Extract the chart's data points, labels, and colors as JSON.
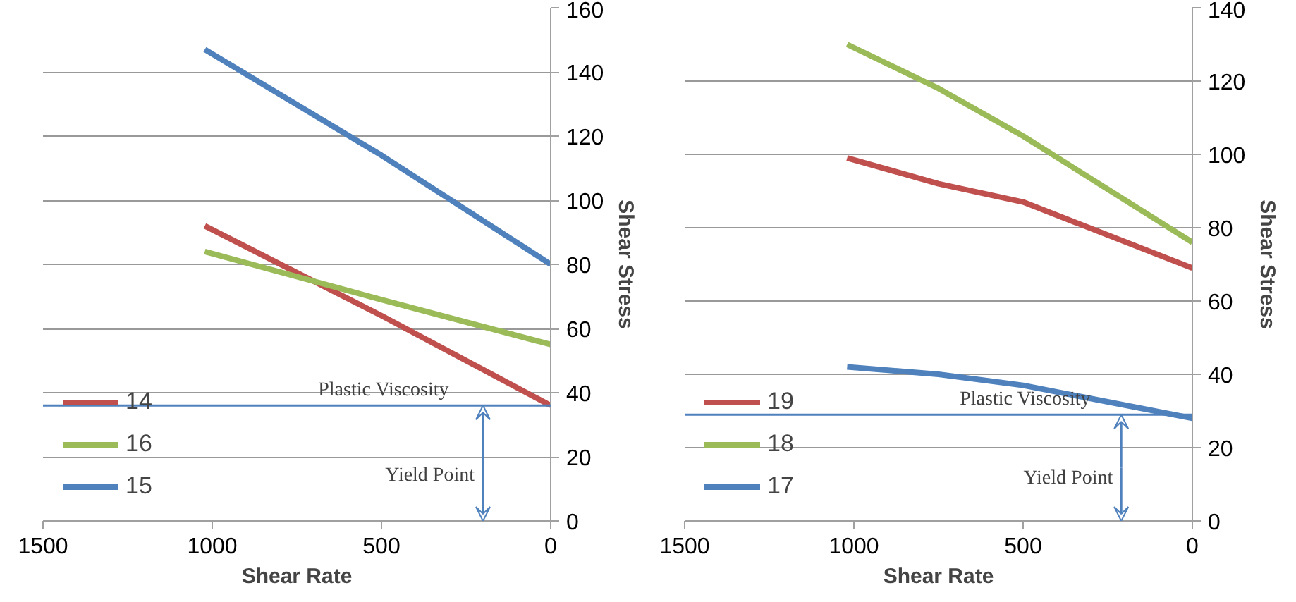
{
  "chart_data": [
    {
      "type": "line",
      "xlabel": "Shear Rate",
      "ylabel": "Shear Stress",
      "x": [
        1022,
        500,
        0
      ],
      "xlim": [
        1500,
        0
      ],
      "xticks": [
        1500,
        1000,
        500,
        0
      ],
      "ylim": [
        0,
        160
      ],
      "yticks": [
        0,
        20,
        40,
        60,
        80,
        100,
        120,
        140,
        160
      ],
      "grid": "y",
      "legend": "bottom left",
      "marker": "none",
      "line_style": "solid",
      "series": [
        {
          "name": "14",
          "color": "#c0504d",
          "values": [
            92,
            64,
            36
          ]
        },
        {
          "name": "16",
          "color": "#9bbb59",
          "values": [
            84,
            69,
            55
          ]
        },
        {
          "name": "15",
          "color": "#4f81bd",
          "values": [
            147,
            114,
            80
          ]
        }
      ],
      "ref_lines": [
        {
          "axis": "y",
          "value": 36,
          "label": null,
          "color": "#4f81bd"
        }
      ],
      "annotations": [
        "Plastic Viscosity",
        {
          "text": "Yield Point",
          "x": 200,
          "y": 36
        }
      ]
    },
    {
      "type": "line",
      "xlabel": "Shear Rate",
      "ylabel": "Shear Stress",
      "x": [
        1020,
        750,
        500,
        0
      ],
      "xlim": [
        1500,
        0
      ],
      "xticks": [
        1500,
        1000,
        500,
        0
      ],
      "ylim": [
        0,
        140
      ],
      "yticks": [
        0,
        20,
        40,
        60,
        80,
        100,
        120,
        140
      ],
      "grid": "y",
      "legend": "bottom left",
      "marker": "none",
      "line_style": "solid",
      "series": [
        {
          "name": "19",
          "color": "#c0504d",
          "values": [
            99,
            92,
            87,
            69
          ]
        },
        {
          "name": "18",
          "color": "#9bbb59",
          "values": [
            130,
            118,
            105,
            76
          ]
        },
        {
          "name": "17",
          "color": "#4f81bd",
          "values": [
            42,
            40,
            37,
            28
          ]
        }
      ],
      "ref_lines": [
        {
          "axis": "y",
          "value": 29,
          "label": null,
          "color": "#4f81bd"
        }
      ],
      "annotations": [
        "Plastic Viscosity",
        {
          "text": "Yield Point",
          "x": 210,
          "y": 29
        }
      ]
    }
  ]
}
